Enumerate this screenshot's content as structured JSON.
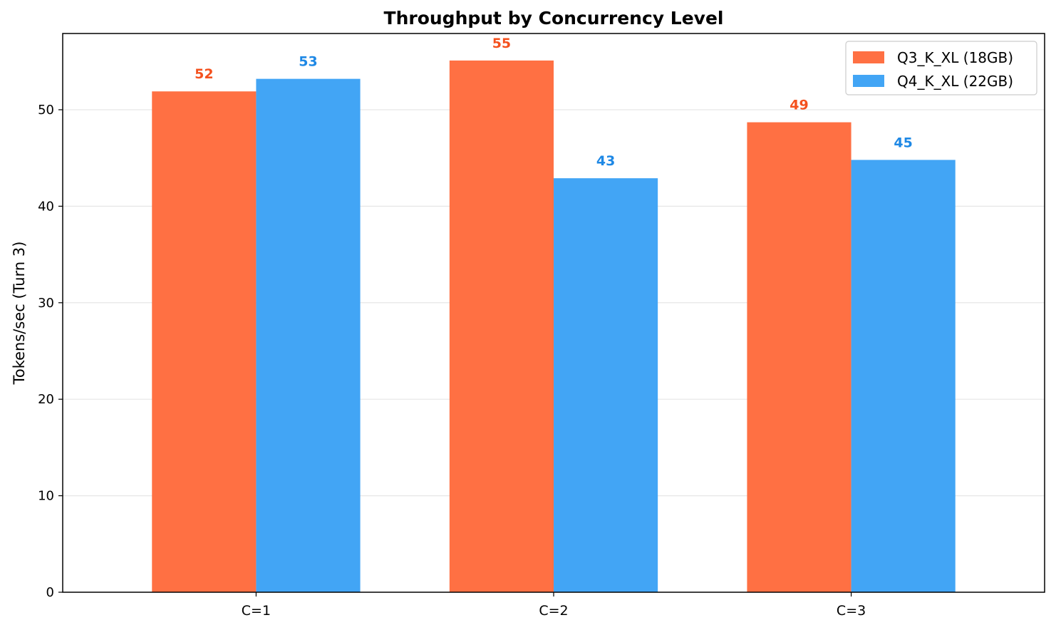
{
  "chart_data": {
    "type": "bar",
    "title": "Throughput by Concurrency Level",
    "xlabel": "",
    "ylabel": "Tokens/sec (Turn 3)",
    "categories": [
      "C=1",
      "C=2",
      "C=3"
    ],
    "series": [
      {
        "name": "Q3_K_XL (18GB)",
        "color": "#ff7043",
        "label_color": "#f4511e",
        "values": [
          51.9,
          55.1,
          48.7
        ],
        "labels": [
          "52",
          "55",
          "49"
        ]
      },
      {
        "name": "Q4_K_XL (22GB)",
        "color": "#42a5f5",
        "label_color": "#1e88e5",
        "values": [
          53.2,
          42.9,
          44.8
        ],
        "labels": [
          "53",
          "43",
          "45"
        ]
      }
    ],
    "ylim": [
      0,
      57.9
    ],
    "yticks": [
      0,
      10,
      20,
      30,
      40,
      50
    ],
    "grid": "y",
    "legend": "top-right"
  }
}
